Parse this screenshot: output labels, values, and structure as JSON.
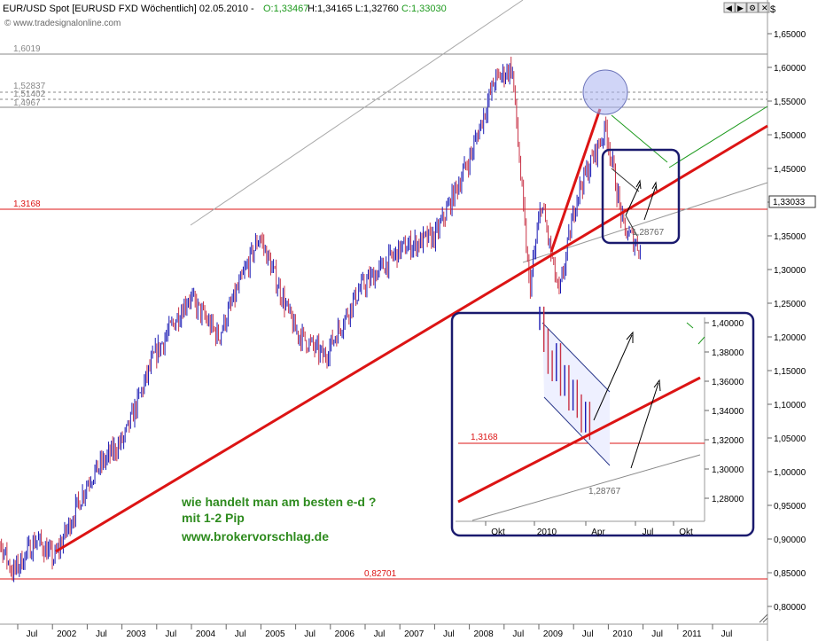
{
  "header": {
    "symbol": "EUR/USD Spot [EURUSD FXD  Wöchentlich] 02.05.2010 - ",
    "open": "O:1,33467",
    "hlc": " H:1,34165 L:1,32760 ",
    "close": "C:1,33030",
    "watermark": "© www.tradesignalonline.com"
  },
  "toolbar": {
    "icons": [
      "prev-icon",
      "next-icon",
      "settings-icon",
      "close-icon"
    ]
  },
  "colors": {
    "candle_up": "#1a1ab4",
    "candle_down": "#c83246",
    "trend": "#dc1414",
    "level": "#dc1414",
    "note": "#2e8b1e",
    "frame": "#1a1a6e"
  },
  "chart_data": {
    "type": "line",
    "title": "EUR/USD Spot [EURUSD FXD Wöchentlich]",
    "y_unit": "$",
    "ylim": [
      0.78,
      1.68
    ],
    "yticks": [
      "1,65000",
      "1,60000",
      "1,55000",
      "1,50000",
      "1,45000",
      "1,40000",
      "1,35000",
      "1,30000",
      "1,25000",
      "1,20000",
      "1,15000",
      "1,10000",
      "1,05000",
      "1,00000",
      "0,95000",
      "0,90000",
      "0,85000",
      "0,80000"
    ],
    "last_price": "1,33033",
    "xticks": [
      "Jul",
      "2002",
      "Jul",
      "2003",
      "Jul",
      "2004",
      "Jul",
      "2005",
      "Jul",
      "2006",
      "Jul",
      "2007",
      "Jul",
      "2008",
      "Jul",
      "2009",
      "Jul",
      "2010",
      "Jul",
      "2011",
      "Jul"
    ],
    "series": [
      {
        "x": [
          "2001-01",
          "2001-06",
          "2001-10",
          "2002-01",
          "2002-07",
          "2003-01",
          "2003-06",
          "2003-12",
          "2004-05",
          "2004-12",
          "2005-06",
          "2005-11",
          "2006-05",
          "2006-12",
          "2007-06",
          "2007-12",
          "2008-04",
          "2008-07",
          "2008-10",
          "2008-12",
          "2009-03",
          "2009-06",
          "2009-11",
          "2010-02",
          "2010-05"
        ],
        "values": [
          0.95,
          0.85,
          0.9,
          0.87,
          0.99,
          1.05,
          1.17,
          1.26,
          1.2,
          1.35,
          1.21,
          1.17,
          1.27,
          1.33,
          1.35,
          1.47,
          1.58,
          1.6,
          1.27,
          1.4,
          1.26,
          1.41,
          1.51,
          1.36,
          1.33
        ]
      }
    ],
    "levels": [
      "1,6019",
      "1,52837",
      "1,51402",
      "1,4967",
      "1,3168",
      "0,82701"
    ],
    "annotations": [
      "1,28767"
    ],
    "note": [
      "wie handelt man am besten e-d ?",
      "mit 1-2 Pip",
      "www.brokervorschlag.de"
    ],
    "inset": {
      "ylim": [
        1.27,
        1.41
      ],
      "yticks": [
        "1,40000",
        "1,38000",
        "1,36000",
        "1,34000",
        "1,32000",
        "1,30000",
        "1,28000"
      ],
      "xticks": [
        "Okt",
        "2010",
        "Apr",
        "Jul",
        "Okt"
      ],
      "levels": [
        "1,3168"
      ],
      "annotations": [
        "1,28767"
      ],
      "candles": [
        1.405,
        1.39,
        1.375,
        1.37,
        1.38,
        1.36,
        1.365,
        1.35,
        1.355,
        1.345,
        1.335,
        1.34,
        1.33
      ]
    }
  }
}
